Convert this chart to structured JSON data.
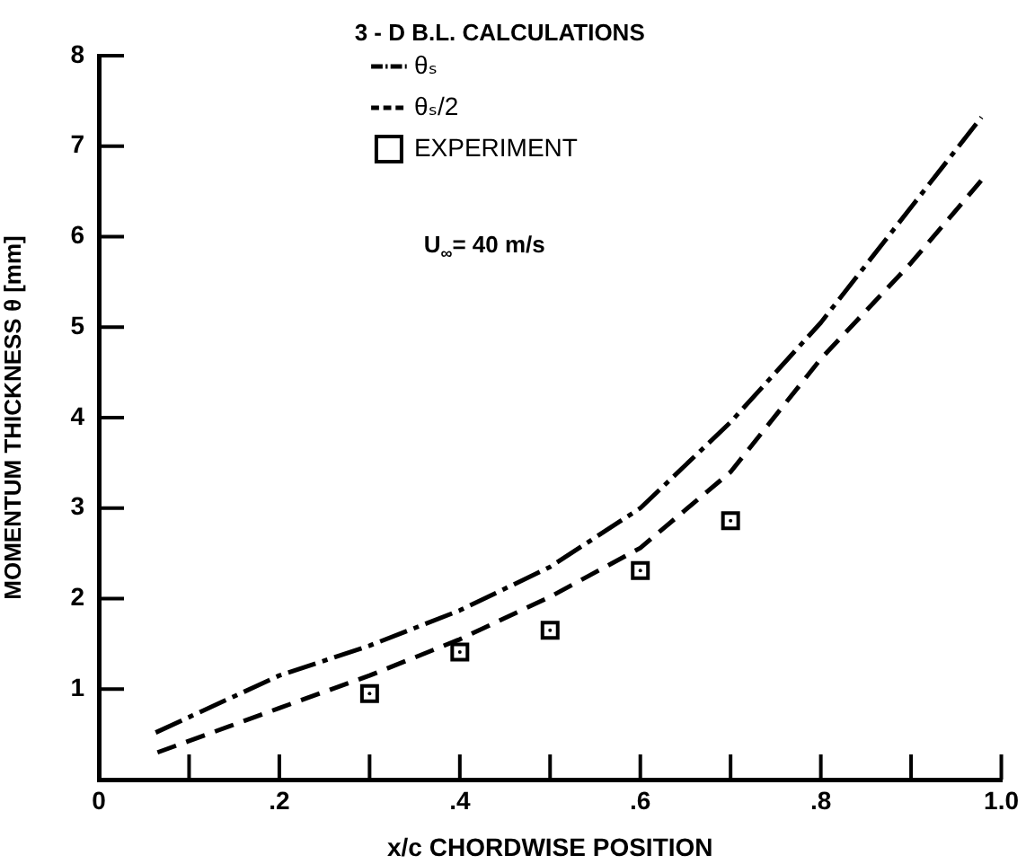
{
  "chart_data": {
    "type": "line",
    "legend_title": "3 - D B.L. CALCULATIONS",
    "xlabel": "x/c CHORDWISE POSITION",
    "ylabel": "MOMENTUM THICKNESS θ [mm]",
    "annotations": [
      "U$_{∞}$= 40 m/s"
    ],
    "xlim": [
      0,
      1.0
    ],
    "xticks": [
      0,
      {
        "value": 0.1,
        "label": null
      },
      {
        "value": 0.2,
        "label": ".2"
      },
      {
        "value": 0.3,
        "label": null
      },
      {
        "value": 0.4,
        "label": ".4"
      },
      {
        "value": 0.5,
        "label": null
      },
      {
        "value": 0.6,
        "label": ".6"
      },
      {
        "value": 0.7,
        "label": null
      },
      {
        "value": 0.8,
        "label": ".8"
      },
      {
        "value": 0.9,
        "label": null
      },
      {
        "value": 1.0,
        "label": "1.0"
      }
    ],
    "ylim": [
      0,
      8
    ],
    "yticks": [
      1,
      2,
      3,
      4,
      5,
      6,
      7,
      8
    ],
    "grid": false,
    "legend": "top",
    "marker": "none",
    "series": [
      {
        "name": "θₛ",
        "type": "line",
        "line_style": "dashdot",
        "color": "#000000",
        "x": [
          0.063,
          0.2,
          0.3,
          0.4,
          0.5,
          0.6,
          0.7,
          0.8,
          0.88,
          0.978
        ],
        "values": [
          0.52,
          1.15,
          1.48,
          1.87,
          2.35,
          3.0,
          3.95,
          5.05,
          6.07,
          7.32
        ]
      },
      {
        "name": "θₛ/2",
        "type": "line",
        "line_style": "dashed",
        "color": "#000000",
        "x": [
          0.065,
          0.2,
          0.3,
          0.4,
          0.5,
          0.6,
          0.7,
          0.8,
          0.9,
          0.982
        ],
        "values": [
          0.3,
          0.79,
          1.15,
          1.55,
          2.02,
          2.56,
          3.4,
          4.65,
          5.71,
          6.67
        ]
      },
      {
        "name": "EXPERIMENT",
        "type": "scatter",
        "marker": "square",
        "color": "#000000",
        "x": [
          0.3,
          0.4,
          0.5,
          0.6,
          0.7
        ],
        "values": [
          0.95,
          1.41,
          1.65,
          2.31,
          2.86
        ]
      }
    ]
  }
}
